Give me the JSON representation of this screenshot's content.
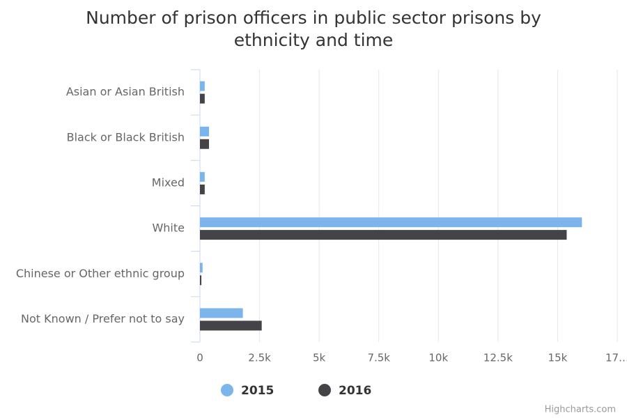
{
  "chart_data": {
    "type": "hbar",
    "title": "Number of prison officers in public sector prisons by ethnicity and time",
    "categories": [
      "Asian or Asian British",
      "Black or Black British",
      "Mixed",
      "White",
      "Chinese or Other ethnic group",
      "Not Known / Prefer not to say"
    ],
    "series": [
      {
        "name": "2015",
        "color": "#7cb5ec",
        "values": [
          200,
          380,
          200,
          16020,
          110,
          1800
        ]
      },
      {
        "name": "2016",
        "color": "#434348",
        "values": [
          200,
          380,
          200,
          15380,
          60,
          2590
        ]
      }
    ],
    "xlim": [
      0,
      17500
    ],
    "xticks": [
      0,
      {
        "value": 2500,
        "label": "2.5k"
      },
      {
        "value": 5000,
        "label": "5k"
      },
      {
        "value": 7500,
        "label": "7.5k"
      },
      {
        "value": 10000,
        "label": "10k"
      },
      {
        "value": 12500,
        "label": "12.5k"
      },
      {
        "value": 15000,
        "label": "15k"
      },
      {
        "value": 17500,
        "label": "17…"
      }
    ],
    "grid": true,
    "legend": "bottom",
    "credits": "Highcharts.com"
  }
}
